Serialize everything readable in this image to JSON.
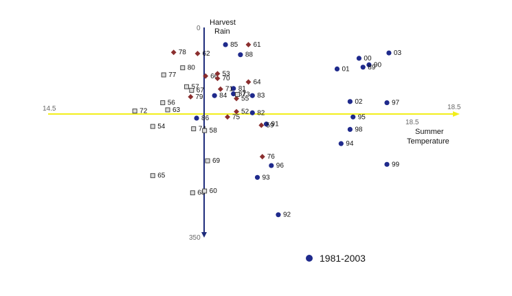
{
  "colors": {
    "modern": "#1f2a8c",
    "diamond": "#8b2f2f",
    "square_fill": "#dcdcdc",
    "square_stroke": "#444444",
    "x_axis": "#f2ee1a",
    "y_axis": "#1c2a7a"
  },
  "chart_data": {
    "type": "scatter",
    "xlabel": [
      "Summer",
      "Temperature"
    ],
    "ylabel": [
      "Harvest",
      "Rain"
    ],
    "xlim": [
      14.5,
      18.5
    ],
    "ylim": [
      0,
      350
    ],
    "y_inverted": true,
    "x_tick_labels": {
      "left": "14.5",
      "right": "18.5",
      "inner": "18.5"
    },
    "y_tick_labels": {
      "top": "0",
      "bottom": "350"
    },
    "legend": {
      "label": "1981-2003",
      "placement": "bottom-center"
    },
    "axes_cross": {
      "x": 16.1,
      "y": 126
    },
    "series": [
      {
        "name": "1981-2003",
        "marker": "circle",
        "points": [
          {
            "label": "85",
            "x": 16.28,
            "y": 29
          },
          {
            "label": "88",
            "x": 16.43,
            "y": 46
          },
          {
            "label": "00",
            "x": 17.62,
            "y": 52
          },
          {
            "label": "03",
            "x": 17.92,
            "y": 43
          },
          {
            "label": "90",
            "x": 17.72,
            "y": 63
          },
          {
            "label": "89",
            "x": 17.66,
            "y": 67
          },
          {
            "label": "01",
            "x": 17.4,
            "y": 70
          },
          {
            "label": "81",
            "x": 16.36,
            "y": 103
          },
          {
            "label": "87",
            "x": 16.36,
            "y": 112
          },
          {
            "label": "84",
            "x": 16.17,
            "y": 115
          },
          {
            "label": "83",
            "x": 16.55,
            "y": 115
          },
          {
            "label": "02",
            "x": 17.53,
            "y": 125
          },
          {
            "label": "97",
            "x": 17.9,
            "y": 127
          },
          {
            "label": "86",
            "x": 15.99,
            "y": 153
          },
          {
            "label": "82",
            "x": 16.55,
            "y": 144
          },
          {
            "label": "95",
            "x": 17.56,
            "y": 151
          },
          {
            "label": "91",
            "x": 16.69,
            "y": 163
          },
          {
            "label": "98",
            "x": 17.53,
            "y": 172
          },
          {
            "label": "94",
            "x": 17.44,
            "y": 196
          },
          {
            "label": "96",
            "x": 16.74,
            "y": 233
          },
          {
            "label": "99",
            "x": 17.9,
            "y": 231
          },
          {
            "label": "93",
            "x": 16.6,
            "y": 253
          },
          {
            "label": "92",
            "x": 16.81,
            "y": 316
          }
        ]
      },
      {
        "name": "",
        "marker": "diamond",
        "points": [
          {
            "label": "78",
            "x": 15.76,
            "y": 42
          },
          {
            "label": "62",
            "x": 16.0,
            "y": 44
          },
          {
            "label": "61",
            "x": 16.51,
            "y": 29
          },
          {
            "label": "66",
            "x": 16.08,
            "y": 82
          },
          {
            "label": "53",
            "x": 16.2,
            "y": 78
          },
          {
            "label": "70",
            "x": 16.2,
            "y": 86
          },
          {
            "label": "64",
            "x": 16.51,
            "y": 92
          },
          {
            "label": "71",
            "x": 16.23,
            "y": 104
          },
          {
            "label": "79",
            "x": 15.93,
            "y": 117
          },
          {
            "label": "55",
            "x": 16.39,
            "y": 120
          },
          {
            "label": "52",
            "x": 16.39,
            "y": 142
          },
          {
            "label": "75",
            "x": 16.3,
            "y": 151
          },
          {
            "label": "59",
            "x": 16.64,
            "y": 165
          },
          {
            "label": "76",
            "x": 16.65,
            "y": 218
          }
        ]
      },
      {
        "name": "",
        "marker": "square",
        "points": [
          {
            "label": "80",
            "x": 15.85,
            "y": 68
          },
          {
            "label": "77",
            "x": 15.66,
            "y": 80
          },
          {
            "label": "57",
            "x": 15.89,
            "y": 100
          },
          {
            "label": "67",
            "x": 15.94,
            "y": 106
          },
          {
            "label": "56",
            "x": 15.65,
            "y": 127
          },
          {
            "label": "73",
            "x": 16.4,
            "y": 113
          },
          {
            "label": "72",
            "x": 15.37,
            "y": 141
          },
          {
            "label": "63",
            "x": 15.7,
            "y": 139
          },
          {
            "label": "54",
            "x": 15.55,
            "y": 167
          },
          {
            "label": "74",
            "x": 15.96,
            "y": 171
          },
          {
            "label": "58",
            "x": 16.07,
            "y": 174
          },
          {
            "label": "69",
            "x": 16.1,
            "y": 225
          },
          {
            "label": "65",
            "x": 15.55,
            "y": 250
          },
          {
            "label": "68",
            "x": 15.95,
            "y": 279
          },
          {
            "label": "60",
            "x": 16.07,
            "y": 276
          }
        ]
      }
    ]
  }
}
